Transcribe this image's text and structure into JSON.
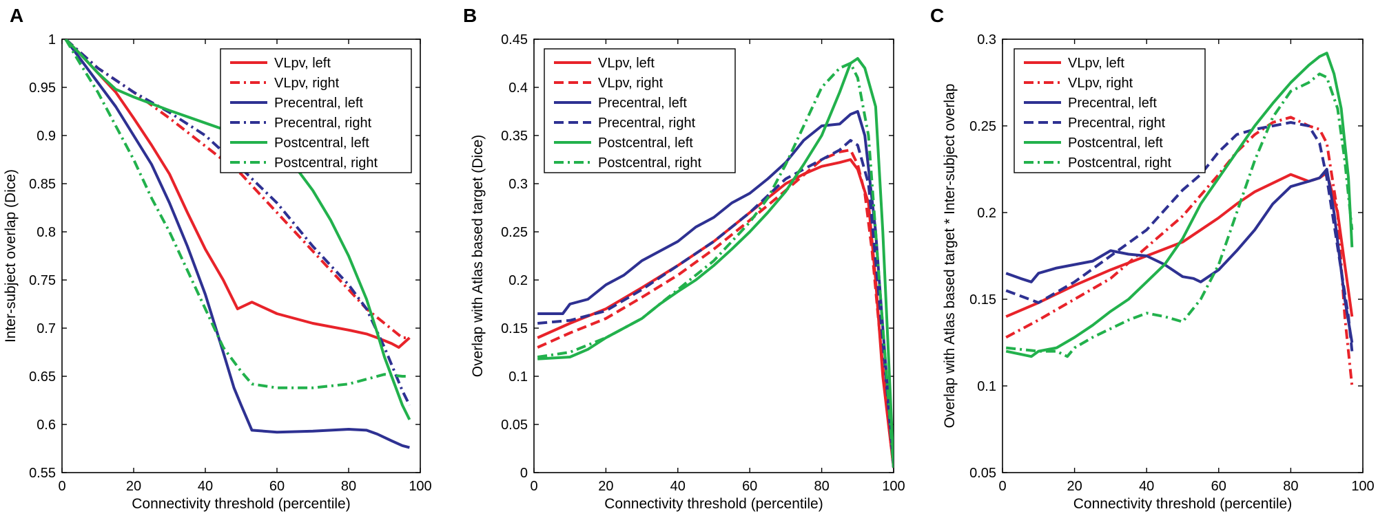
{
  "colors": {
    "red": "#e8232a",
    "blue": "#2e3192",
    "green": "#22b14c"
  },
  "legend_labels": [
    "VLpv, left",
    "VLpv, right",
    "Precentral, left",
    "Precentral, right",
    "Postcentral, left",
    "Postcentral, right"
  ],
  "chart_data": [
    {
      "type": "line",
      "panel": "A",
      "xlabel": "Connectivity threshold (percentile)",
      "ylabel": "Inter-subject overlap (Dice)",
      "xlim": [
        0,
        100
      ],
      "ylim": [
        0.55,
        1
      ],
      "xticks": [
        0,
        20,
        40,
        60,
        80,
        100
      ],
      "xtick_labels": [
        "0",
        "20",
        "40",
        "60",
        "80",
        "100"
      ],
      "yticks": [
        0.55,
        0.6,
        0.65,
        0.7,
        0.75,
        0.8,
        0.85,
        0.9,
        0.95,
        1
      ],
      "ytick_labels": [
        "0.55",
        "0.6",
        "0.65",
        "0.7",
        "0.75",
        "0.8",
        "0.85",
        "0.9",
        "0.95",
        "1"
      ],
      "legend_position": "top-right",
      "series": [
        {
          "name": "VLpv, left",
          "color": "red",
          "dash": "solid",
          "x": [
            1,
            5,
            10,
            15,
            20,
            25,
            30,
            35,
            40,
            45,
            49,
            53,
            60,
            70,
            80,
            85,
            88,
            92,
            94,
            97
          ],
          "y": [
            1,
            0.985,
            0.965,
            0.945,
            0.918,
            0.89,
            0.86,
            0.82,
            0.782,
            0.75,
            0.72,
            0.727,
            0.715,
            0.705,
            0.698,
            0.694,
            0.69,
            0.684,
            0.68,
            0.69
          ]
        },
        {
          "name": "VLpv, right",
          "color": "red",
          "dash": "dashdot",
          "x": [
            1,
            10,
            20,
            30,
            40,
            50,
            60,
            70,
            80,
            85,
            90,
            95,
            97
          ],
          "y": [
            1,
            0.97,
            0.945,
            0.918,
            0.889,
            0.86,
            0.82,
            0.78,
            0.74,
            0.72,
            0.705,
            0.69,
            0.69
          ]
        },
        {
          "name": "Precentral, left",
          "color": "blue",
          "dash": "solid",
          "x": [
            1,
            5,
            10,
            15,
            20,
            25,
            30,
            35,
            40,
            45,
            48,
            50,
            53,
            60,
            70,
            80,
            85,
            88,
            92,
            95,
            97
          ],
          "y": [
            1,
            0.98,
            0.955,
            0.93,
            0.9,
            0.87,
            0.83,
            0.785,
            0.735,
            0.675,
            0.638,
            0.62,
            0.594,
            0.592,
            0.593,
            0.595,
            0.594,
            0.59,
            0.583,
            0.578,
            0.576
          ]
        },
        {
          "name": "Precentral, right",
          "color": "blue",
          "dash": "dashdot",
          "x": [
            1,
            10,
            20,
            30,
            40,
            50,
            60,
            70,
            80,
            85,
            90,
            95,
            97
          ],
          "y": [
            1,
            0.97,
            0.945,
            0.924,
            0.9,
            0.866,
            0.83,
            0.785,
            0.745,
            0.72,
            0.68,
            0.635,
            0.62
          ]
        },
        {
          "name": "Postcentral, left",
          "color": "green",
          "dash": "solid",
          "x": [
            1,
            5,
            10,
            15,
            20,
            30,
            40,
            50,
            60,
            65,
            70,
            75,
            80,
            85,
            88,
            90,
            93,
            95,
            97
          ],
          "y": [
            1,
            0.985,
            0.965,
            0.948,
            0.94,
            0.926,
            0.913,
            0.9,
            0.885,
            0.868,
            0.843,
            0.812,
            0.775,
            0.73,
            0.695,
            0.67,
            0.64,
            0.62,
            0.605
          ]
        },
        {
          "name": "Postcentral, right",
          "color": "green",
          "dash": "dashdot",
          "x": [
            1,
            5,
            10,
            15,
            20,
            25,
            30,
            35,
            40,
            45,
            50,
            53,
            60,
            70,
            80,
            85,
            90,
            95,
            97
          ],
          "y": [
            1,
            0.975,
            0.945,
            0.91,
            0.875,
            0.835,
            0.8,
            0.76,
            0.72,
            0.68,
            0.655,
            0.642,
            0.638,
            0.638,
            0.642,
            0.647,
            0.652,
            0.65,
            0.65
          ]
        }
      ]
    },
    {
      "type": "line",
      "panel": "B",
      "xlabel": "Connectivity threshold (percentile)",
      "ylabel": "Overlap with Atlas based target (Dice)",
      "xlim": [
        0,
        100
      ],
      "ylim": [
        0,
        0.45
      ],
      "xticks": [
        0,
        20,
        40,
        60,
        80,
        100
      ],
      "xtick_labels": [
        "0",
        "20",
        "40",
        "60",
        "80",
        "100"
      ],
      "yticks": [
        0,
        0.05,
        0.1,
        0.15,
        0.2,
        0.25,
        0.3,
        0.35,
        0.4,
        0.45
      ],
      "ytick_labels": [
        "0",
        "0.05",
        "0.1",
        "0.15",
        "0.2",
        "0.25",
        "0.3",
        "0.35",
        "0.4",
        "0.45"
      ],
      "legend_position": "top-left",
      "series": [
        {
          "name": "VLpv, left",
          "color": "red",
          "dash": "solid",
          "x": [
            1,
            10,
            20,
            30,
            40,
            50,
            60,
            70,
            75,
            80,
            85,
            88,
            90,
            93,
            95,
            97,
            100
          ],
          "y": [
            0.14,
            0.155,
            0.17,
            0.192,
            0.215,
            0.24,
            0.27,
            0.3,
            0.31,
            0.318,
            0.322,
            0.325,
            0.315,
            0.28,
            0.2,
            0.1,
            0.005
          ]
        },
        {
          "name": "VLpv, right",
          "color": "red",
          "dash": "dashed",
          "x": [
            1,
            10,
            20,
            30,
            40,
            50,
            60,
            70,
            80,
            85,
            88,
            90,
            92,
            94,
            96,
            98,
            100
          ],
          "y": [
            0.13,
            0.145,
            0.16,
            0.182,
            0.205,
            0.232,
            0.262,
            0.293,
            0.325,
            0.333,
            0.335,
            0.32,
            0.29,
            0.23,
            0.15,
            0.07,
            0.005
          ]
        },
        {
          "name": "Precentral, left",
          "color": "blue",
          "dash": "solid",
          "x": [
            1,
            8,
            10,
            15,
            20,
            25,
            30,
            35,
            40,
            45,
            50,
            55,
            60,
            65,
            70,
            75,
            80,
            85,
            88,
            90,
            92,
            95,
            97,
            100
          ],
          "y": [
            0.165,
            0.165,
            0.175,
            0.18,
            0.195,
            0.205,
            0.22,
            0.23,
            0.24,
            0.255,
            0.265,
            0.28,
            0.29,
            0.305,
            0.322,
            0.345,
            0.36,
            0.362,
            0.372,
            0.375,
            0.35,
            0.25,
            0.15,
            0.005
          ]
        },
        {
          "name": "Precentral, right",
          "color": "blue",
          "dash": "dashed",
          "x": [
            1,
            10,
            20,
            30,
            40,
            50,
            60,
            70,
            75,
            80,
            85,
            88,
            90,
            93,
            96,
            100
          ],
          "y": [
            0.155,
            0.158,
            0.168,
            0.19,
            0.215,
            0.24,
            0.27,
            0.305,
            0.315,
            0.325,
            0.335,
            0.345,
            0.34,
            0.3,
            0.18,
            0.005
          ]
        },
        {
          "name": "Postcentral, left",
          "color": "green",
          "dash": "solid",
          "x": [
            1,
            10,
            15,
            20,
            25,
            30,
            35,
            40,
            45,
            50,
            55,
            60,
            65,
            70,
            75,
            80,
            85,
            88,
            90,
            92,
            95,
            97,
            100
          ],
          "y": [
            0.118,
            0.12,
            0.128,
            0.14,
            0.15,
            0.16,
            0.175,
            0.188,
            0.2,
            0.215,
            0.232,
            0.25,
            0.27,
            0.292,
            0.32,
            0.35,
            0.395,
            0.425,
            0.43,
            0.42,
            0.38,
            0.25,
            0.005
          ]
        },
        {
          "name": "Postcentral, right",
          "color": "green",
          "dash": "dashdot",
          "x": [
            1,
            10,
            20,
            30,
            40,
            50,
            60,
            65,
            70,
            75,
            80,
            85,
            88,
            90,
            93,
            96,
            100
          ],
          "y": [
            0.12,
            0.125,
            0.14,
            0.16,
            0.19,
            0.22,
            0.26,
            0.285,
            0.32,
            0.36,
            0.4,
            0.42,
            0.425,
            0.41,
            0.35,
            0.2,
            0.005
          ]
        }
      ]
    },
    {
      "type": "line",
      "panel": "C",
      "xlabel": "Connectivity threshold (percentile)",
      "ylabel": "Overlap with Atlas based target * Inter-subject overlap",
      "xlim": [
        0,
        100
      ],
      "ylim": [
        0.05,
        0.3
      ],
      "xticks": [
        0,
        20,
        40,
        60,
        80,
        100
      ],
      "xtick_labels": [
        "0",
        "20",
        "40",
        "60",
        "80",
        "100"
      ],
      "yticks": [
        0.05,
        0.1,
        0.15,
        0.2,
        0.25,
        0.3
      ],
      "ytick_labels": [
        "0.05",
        "0.1",
        "0.15",
        "0.2",
        "0.25",
        "0.3"
      ],
      "legend_position": "top-left",
      "series": [
        {
          "name": "VLpv, left",
          "color": "red",
          "dash": "solid",
          "x": [
            1,
            10,
            20,
            30,
            40,
            50,
            55,
            60,
            65,
            70,
            75,
            80,
            85,
            88,
            90,
            93,
            95,
            97
          ],
          "y": [
            0.14,
            0.148,
            0.158,
            0.167,
            0.175,
            0.183,
            0.19,
            0.197,
            0.205,
            0.212,
            0.217,
            0.222,
            0.218,
            0.22,
            0.223,
            0.2,
            0.17,
            0.14
          ]
        },
        {
          "name": "VLpv, right",
          "color": "red",
          "dash": "dashdot",
          "x": [
            1,
            10,
            20,
            30,
            40,
            50,
            55,
            60,
            65,
            70,
            75,
            80,
            85,
            88,
            90,
            93,
            95,
            97
          ],
          "y": [
            0.128,
            0.138,
            0.15,
            0.162,
            0.18,
            0.198,
            0.21,
            0.222,
            0.235,
            0.245,
            0.252,
            0.255,
            0.25,
            0.248,
            0.24,
            0.2,
            0.14,
            0.1
          ]
        },
        {
          "name": "Precentral, left",
          "color": "blue",
          "dash": "solid",
          "x": [
            1,
            5,
            8,
            10,
            15,
            20,
            25,
            30,
            35,
            40,
            45,
            50,
            53,
            55,
            60,
            65,
            70,
            75,
            80,
            85,
            88,
            90,
            92,
            95,
            97
          ],
          "y": [
            0.165,
            0.162,
            0.16,
            0.165,
            0.168,
            0.17,
            0.172,
            0.178,
            0.176,
            0.175,
            0.17,
            0.163,
            0.162,
            0.16,
            0.167,
            0.178,
            0.19,
            0.205,
            0.215,
            0.218,
            0.22,
            0.225,
            0.2,
            0.15,
            0.125
          ]
        },
        {
          "name": "Precentral, right",
          "color": "blue",
          "dash": "dashed",
          "x": [
            1,
            10,
            20,
            30,
            40,
            50,
            55,
            60,
            65,
            70,
            75,
            80,
            85,
            88,
            90,
            93,
            96,
            97
          ],
          "y": [
            0.155,
            0.148,
            0.16,
            0.175,
            0.19,
            0.213,
            0.222,
            0.235,
            0.245,
            0.248,
            0.25,
            0.252,
            0.25,
            0.24,
            0.22,
            0.18,
            0.14,
            0.12
          ]
        },
        {
          "name": "Postcentral, left",
          "color": "green",
          "dash": "solid",
          "x": [
            1,
            8,
            10,
            15,
            20,
            25,
            30,
            35,
            40,
            45,
            50,
            55,
            60,
            65,
            70,
            75,
            80,
            85,
            88,
            90,
            92,
            94,
            96,
            97
          ],
          "y": [
            0.12,
            0.117,
            0.12,
            0.122,
            0.128,
            0.135,
            0.143,
            0.15,
            0.16,
            0.17,
            0.185,
            0.205,
            0.22,
            0.235,
            0.25,
            0.263,
            0.275,
            0.285,
            0.29,
            0.292,
            0.28,
            0.26,
            0.22,
            0.18
          ]
        },
        {
          "name": "Postcentral, right",
          "color": "green",
          "dash": "dashdot",
          "x": [
            1,
            10,
            15,
            18,
            20,
            25,
            30,
            35,
            40,
            45,
            50,
            55,
            60,
            65,
            70,
            75,
            80,
            85,
            88,
            90,
            93,
            95,
            97
          ],
          "y": [
            0.122,
            0.12,
            0.12,
            0.117,
            0.122,
            0.128,
            0.133,
            0.138,
            0.142,
            0.14,
            0.137,
            0.15,
            0.17,
            0.2,
            0.23,
            0.255,
            0.27,
            0.275,
            0.28,
            0.278,
            0.26,
            0.23,
            0.19
          ]
        }
      ]
    }
  ]
}
